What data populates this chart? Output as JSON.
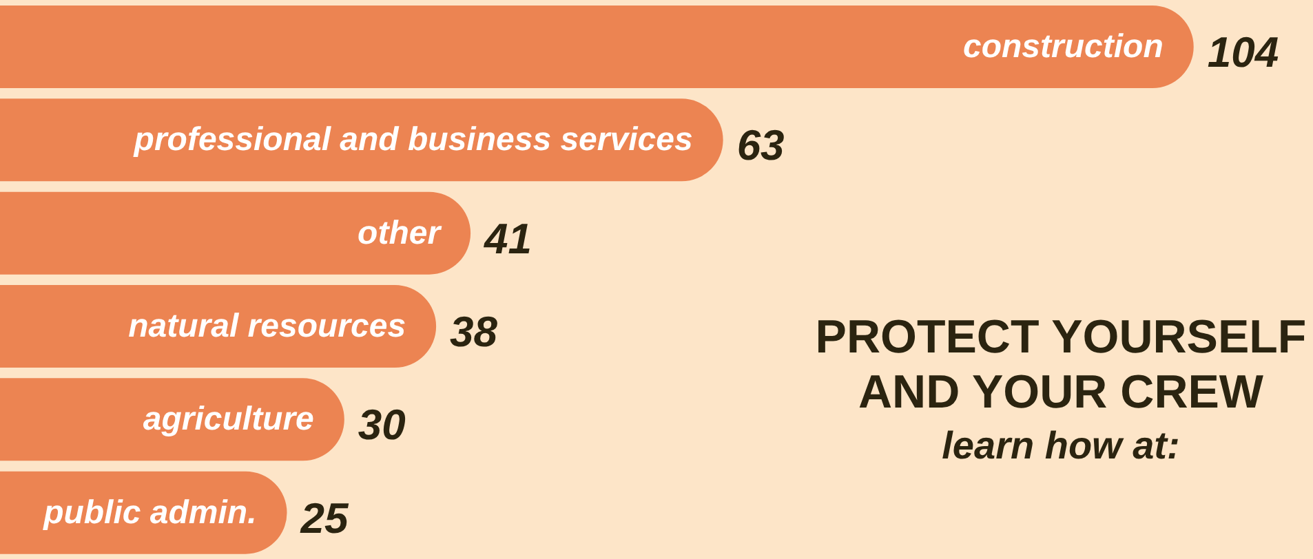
{
  "chart_data": {
    "type": "bar",
    "orientation": "horizontal",
    "categories": [
      "construction",
      "professional and business services",
      "other",
      "natural resources",
      "agriculture",
      "public admin."
    ],
    "values": [
      104,
      63,
      41,
      38,
      30,
      25
    ],
    "color": "#ec8452",
    "data_labels": true,
    "tick_labels": "y",
    "annotations": [
      "PROTECT YOURSELF",
      "AND YOUR CREW",
      "learn how at:"
    ]
  }
}
